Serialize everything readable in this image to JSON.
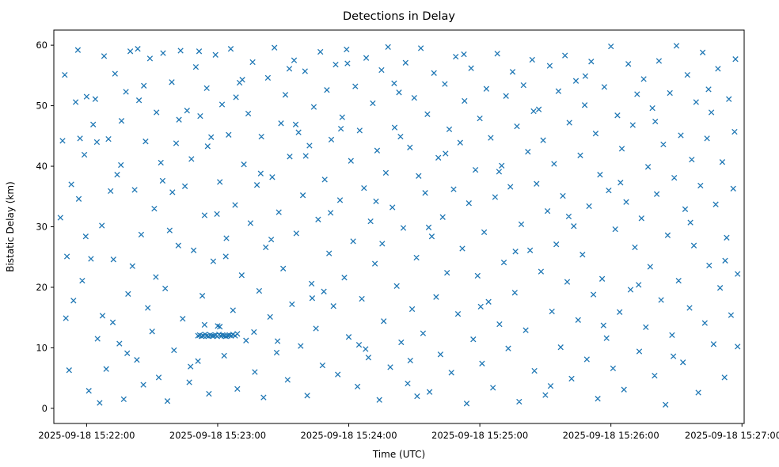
{
  "chart_data": {
    "type": "scatter",
    "title": "Detections in Delay",
    "xlabel": "Time (UTC)",
    "ylabel": "Bistatic Delay (km)",
    "marker": "x",
    "marker_color": "#1f77b4",
    "grid": false,
    "legend": "none",
    "xlim": [
      0,
      316
    ],
    "ylim": [
      -2.5,
      62.5
    ],
    "x_ticks": [
      {
        "t": 15,
        "label": "2025-09-18 15:22:00"
      },
      {
        "t": 75,
        "label": "2025-09-18 15:23:00"
      },
      {
        "t": 135,
        "label": "2025-09-18 15:24:00"
      },
      {
        "t": 195,
        "label": "2025-09-18 15:25:00"
      },
      {
        "t": 255,
        "label": "2025-09-18 15:26:00"
      },
      {
        "t": 315,
        "label": "2025-09-18 15:27:00"
      }
    ],
    "y_ticks": [
      0,
      10,
      20,
      30,
      40,
      50,
      60
    ],
    "points": [
      [
        3,
        31.5
      ],
      [
        4,
        44.2
      ],
      [
        5,
        55.1
      ],
      [
        6,
        25.1
      ],
      [
        7,
        6.3
      ],
      [
        8,
        37
      ],
      [
        9,
        17.8
      ],
      [
        10,
        50.6
      ],
      [
        11,
        59.2
      ],
      [
        12,
        44.6
      ],
      [
        13,
        21.1
      ],
      [
        14,
        41.9
      ],
      [
        15,
        51.5
      ],
      [
        16,
        2.9
      ],
      [
        17,
        24.7
      ],
      [
        18,
        46.9
      ],
      [
        19,
        51.1
      ],
      [
        20,
        11.5
      ],
      [
        21,
        0.9
      ],
      [
        22,
        30.2
      ],
      [
        23,
        58.2
      ],
      [
        24,
        6.5
      ],
      [
        25,
        44.5
      ],
      [
        26,
        35.9
      ],
      [
        27,
        14.2
      ],
      [
        28,
        55.3
      ],
      [
        29,
        38.6
      ],
      [
        30,
        10.7
      ],
      [
        31,
        47.5
      ],
      [
        32,
        1.5
      ],
      [
        33,
        52.3
      ],
      [
        34,
        18.9
      ],
      [
        35,
        59
      ],
      [
        36,
        23.5
      ],
      [
        37,
        36.1
      ],
      [
        38,
        8
      ],
      [
        39,
        50.9
      ],
      [
        40,
        28.7
      ],
      [
        41,
        3.9
      ],
      [
        42,
        44.1
      ],
      [
        43,
        16.6
      ],
      [
        44,
        57.8
      ],
      [
        45,
        12.7
      ],
      [
        46,
        33
      ],
      [
        47,
        48.9
      ],
      [
        48,
        5.1
      ],
      [
        49,
        40.6
      ],
      [
        50,
        58.7
      ],
      [
        51,
        19.8
      ],
      [
        52,
        1.2
      ],
      [
        53,
        29.4
      ],
      [
        54,
        53.9
      ],
      [
        55,
        9.6
      ],
      [
        56,
        43.8
      ],
      [
        57,
        26.9
      ],
      [
        58,
        59.1
      ],
      [
        59,
        14.8
      ],
      [
        60,
        36.7
      ],
      [
        61,
        49.2
      ],
      [
        62,
        4.3
      ],
      [
        66,
        12
      ],
      [
        66.8,
        12.1
      ],
      [
        67.6,
        11.9
      ],
      [
        68.4,
        12
      ],
      [
        69.2,
        12.2
      ],
      [
        70,
        12
      ],
      [
        70.8,
        11.9
      ],
      [
        71.6,
        12.1
      ],
      [
        72.4,
        12
      ],
      [
        73.2,
        12
      ],
      [
        74,
        12.1
      ],
      [
        74.8,
        11.9
      ],
      [
        75.6,
        12.2
      ],
      [
        76.4,
        12
      ],
      [
        77.2,
        12.1
      ],
      [
        78,
        12
      ],
      [
        78.8,
        11.9
      ],
      [
        79.6,
        12
      ],
      [
        80.4,
        12.1
      ],
      [
        81.2,
        12
      ],
      [
        82,
        12.2
      ],
      [
        83,
        12
      ],
      [
        69,
        13.8
      ],
      [
        76,
        13.5
      ],
      [
        84,
        12.3
      ],
      [
        63,
        41.2
      ],
      [
        64,
        26.1
      ],
      [
        65,
        56.4
      ],
      [
        66,
        7.8
      ],
      [
        67,
        48.3
      ],
      [
        68,
        18.6
      ],
      [
        69,
        31.9
      ],
      [
        70,
        52.9
      ],
      [
        71,
        2.4
      ],
      [
        72,
        44.8
      ],
      [
        73,
        24.3
      ],
      [
        74,
        58.4
      ],
      [
        75,
        13.6
      ],
      [
        76,
        37.4
      ],
      [
        77,
        50.2
      ],
      [
        78,
        8.7
      ],
      [
        79,
        28.1
      ],
      [
        80,
        45.2
      ],
      [
        81,
        59.4
      ],
      [
        82,
        16.2
      ],
      [
        83,
        33.6
      ],
      [
        84,
        3.2
      ],
      [
        85,
        53.8
      ],
      [
        86,
        22
      ],
      [
        87,
        40.3
      ],
      [
        88,
        11.2
      ],
      [
        89,
        48.7
      ],
      [
        90,
        30.6
      ],
      [
        91,
        57.2
      ],
      [
        92,
        6
      ],
      [
        93,
        36.9
      ],
      [
        94,
        19.4
      ],
      [
        95,
        44.9
      ],
      [
        96,
        1.8
      ],
      [
        97,
        26.6
      ],
      [
        98,
        54.6
      ],
      [
        99,
        15.1
      ],
      [
        100,
        38.2
      ],
      [
        101,
        59.6
      ],
      [
        102,
        9.2
      ],
      [
        103,
        32.4
      ],
      [
        104,
        47.1
      ],
      [
        105,
        23.1
      ],
      [
        106,
        51.8
      ],
      [
        107,
        4.7
      ],
      [
        108,
        41.6
      ],
      [
        109,
        17.2
      ],
      [
        110,
        57.5
      ],
      [
        111,
        28.9
      ],
      [
        112,
        45.6
      ],
      [
        113,
        10.3
      ],
      [
        114,
        35.2
      ],
      [
        115,
        55.7
      ],
      [
        116,
        2.1
      ],
      [
        117,
        43.4
      ],
      [
        118,
        20.6
      ],
      [
        119,
        49.8
      ],
      [
        120,
        13.2
      ],
      [
        121,
        31.2
      ],
      [
        122,
        58.9
      ],
      [
        123,
        7.1
      ],
      [
        124,
        37.8
      ],
      [
        125,
        52.6
      ],
      [
        126,
        25.6
      ],
      [
        127,
        44.4
      ],
      [
        128,
        16.9
      ],
      [
        129,
        56.8
      ],
      [
        130,
        5.6
      ],
      [
        131,
        34.4
      ],
      [
        132,
        48.1
      ],
      [
        133,
        21.6
      ],
      [
        134,
        59.3
      ],
      [
        135,
        11.8
      ],
      [
        136,
        40.9
      ],
      [
        137,
        27.6
      ],
      [
        138,
        53.2
      ],
      [
        139,
        3.6
      ],
      [
        140,
        45.9
      ],
      [
        141,
        18.1
      ],
      [
        142,
        36.4
      ],
      [
        143,
        57.9
      ],
      [
        144,
        8.4
      ],
      [
        145,
        30.9
      ],
      [
        146,
        50.4
      ],
      [
        147,
        23.9
      ],
      [
        148,
        42.6
      ],
      [
        149,
        1.4
      ],
      [
        150,
        55.9
      ],
      [
        151,
        14.4
      ],
      [
        152,
        38.9
      ],
      [
        153,
        59.7
      ],
      [
        154,
        6.8
      ],
      [
        155,
        33.2
      ],
      [
        156,
        46.4
      ],
      [
        157,
        20.2
      ],
      [
        158,
        52.2
      ],
      [
        159,
        10.9
      ],
      [
        160,
        29.8
      ],
      [
        161,
        57.1
      ],
      [
        162,
        4.1
      ],
      [
        163,
        43.1
      ],
      [
        164,
        16.4
      ],
      [
        165,
        51.3
      ],
      [
        166,
        24.9
      ],
      [
        167,
        38.4
      ],
      [
        168,
        59.5
      ],
      [
        169,
        12.4
      ],
      [
        170,
        35.6
      ],
      [
        171,
        48.6
      ],
      [
        172,
        2.7
      ],
      [
        173,
        28.4
      ],
      [
        174,
        55.4
      ],
      [
        175,
        18.4
      ],
      [
        176,
        41.4
      ],
      [
        177,
        8.9
      ],
      [
        178,
        31.6
      ],
      [
        179,
        53.6
      ],
      [
        180,
        22.4
      ],
      [
        181,
        46.1
      ],
      [
        182,
        5.9
      ],
      [
        183,
        36.2
      ],
      [
        184,
        58.1
      ],
      [
        185,
        15.6
      ],
      [
        186,
        43.9
      ],
      [
        187,
        26.4
      ],
      [
        188,
        50.8
      ],
      [
        189,
        0.8
      ],
      [
        190,
        33.9
      ],
      [
        191,
        56.2
      ],
      [
        192,
        11.4
      ],
      [
        193,
        39.4
      ],
      [
        194,
        21.9
      ],
      [
        195,
        47.9
      ],
      [
        196,
        7.4
      ],
      [
        197,
        29.1
      ],
      [
        198,
        52.8
      ],
      [
        199,
        17.6
      ],
      [
        200,
        44.7
      ],
      [
        201,
        3.4
      ],
      [
        202,
        34.9
      ],
      [
        203,
        58.6
      ],
      [
        204,
        13.9
      ],
      [
        205,
        40.1
      ],
      [
        206,
        24.1
      ],
      [
        207,
        51.6
      ],
      [
        208,
        9.9
      ],
      [
        209,
        36.6
      ],
      [
        210,
        55.6
      ],
      [
        211,
        19.1
      ],
      [
        212,
        46.6
      ],
      [
        213,
        1.1
      ],
      [
        214,
        30.4
      ],
      [
        215,
        53.4
      ],
      [
        216,
        12.9
      ],
      [
        217,
        42.4
      ],
      [
        218,
        26.1
      ],
      [
        219,
        57.6
      ],
      [
        220,
        6.2
      ],
      [
        221,
        37.1
      ],
      [
        222,
        49.4
      ],
      [
        223,
        22.6
      ],
      [
        224,
        44.3
      ],
      [
        225,
        2.2
      ],
      [
        226,
        32.6
      ],
      [
        227,
        56.6
      ],
      [
        228,
        16
      ],
      [
        229,
        40.4
      ],
      [
        230,
        27.1
      ],
      [
        231,
        52.4
      ],
      [
        232,
        10.1
      ],
      [
        233,
        35.1
      ],
      [
        234,
        58.3
      ],
      [
        235,
        20.9
      ],
      [
        236,
        47.2
      ],
      [
        237,
        4.9
      ],
      [
        238,
        30.1
      ],
      [
        239,
        54.1
      ],
      [
        240,
        14.6
      ],
      [
        241,
        41.8
      ],
      [
        242,
        25.4
      ],
      [
        243,
        50.1
      ],
      [
        244,
        8.1
      ],
      [
        245,
        33.4
      ],
      [
        246,
        57.3
      ],
      [
        247,
        18.8
      ],
      [
        248,
        45.4
      ],
      [
        249,
        1.6
      ],
      [
        250,
        38.6
      ],
      [
        251,
        21.4
      ],
      [
        252,
        53.1
      ],
      [
        253,
        11.6
      ],
      [
        254,
        36
      ],
      [
        255,
        59.8
      ],
      [
        256,
        6.6
      ],
      [
        257,
        29.6
      ],
      [
        258,
        48.4
      ],
      [
        259,
        15.9
      ],
      [
        260,
        42.9
      ],
      [
        261,
        3.1
      ],
      [
        262,
        34.1
      ],
      [
        263,
        56.9
      ],
      [
        264,
        19.6
      ],
      [
        265,
        46.8
      ],
      [
        266,
        26.6
      ],
      [
        267,
        51.9
      ],
      [
        268,
        9.4
      ],
      [
        269,
        31.4
      ],
      [
        270,
        54.4
      ],
      [
        271,
        13.4
      ],
      [
        272,
        39.9
      ],
      [
        273,
        23.4
      ],
      [
        274,
        49.6
      ],
      [
        275,
        5.4
      ],
      [
        276,
        35.4
      ],
      [
        277,
        57.4
      ],
      [
        278,
        17.9
      ],
      [
        279,
        43.6
      ],
      [
        280,
        0.6
      ],
      [
        281,
        28.6
      ],
      [
        282,
        52.1
      ],
      [
        283,
        12.1
      ],
      [
        284,
        38.1
      ],
      [
        285,
        59.9
      ],
      [
        286,
        21.1
      ],
      [
        287,
        45.1
      ],
      [
        288,
        7.6
      ],
      [
        289,
        32.9
      ],
      [
        290,
        55.1
      ],
      [
        291,
        16.6
      ],
      [
        292,
        41.1
      ],
      [
        293,
        26.9
      ],
      [
        294,
        50.6
      ],
      [
        295,
        2.6
      ],
      [
        296,
        36.8
      ],
      [
        297,
        58.8
      ],
      [
        298,
        14.1
      ],
      [
        299,
        44.6
      ],
      [
        300,
        23.6
      ],
      [
        301,
        48.9
      ],
      [
        302,
        10.6
      ],
      [
        303,
        33.7
      ],
      [
        304,
        56.1
      ],
      [
        305,
        19.9
      ],
      [
        306,
        40.7
      ],
      [
        307,
        5.1
      ],
      [
        308,
        28.2
      ],
      [
        309,
        51.1
      ],
      [
        310,
        15.4
      ],
      [
        311,
        36.3
      ],
      [
        312,
        57.7
      ],
      [
        313,
        22.2
      ],
      [
        313,
        10.2
      ],
      [
        5.5,
        14.9
      ],
      [
        11.4,
        34.6
      ],
      [
        19.7,
        44
      ],
      [
        27.3,
        24.6
      ],
      [
        33.6,
        9.1
      ],
      [
        41.2,
        53.3
      ],
      [
        49.8,
        37.6
      ],
      [
        57.3,
        47.7
      ],
      [
        66.5,
        59
      ],
      [
        74.7,
        32.1
      ],
      [
        83.4,
        51.4
      ],
      [
        91.6,
        12.6
      ],
      [
        99.5,
        27.9
      ],
      [
        107.8,
        56.1
      ],
      [
        115.3,
        41.7
      ],
      [
        123.6,
        19.3
      ],
      [
        131.4,
        46.2
      ],
      [
        139.7,
        10.5
      ],
      [
        147.5,
        34.2
      ],
      [
        155.8,
        53.7
      ],
      [
        163.2,
        7.9
      ],
      [
        171.6,
        29.9
      ],
      [
        179.3,
        42.1
      ],
      [
        187.7,
        58.5
      ],
      [
        195.4,
        16.8
      ],
      [
        203.8,
        39.1
      ],
      [
        211.3,
        25.9
      ],
      [
        219.6,
        49.1
      ],
      [
        227.4,
        3.7
      ],
      [
        235.7,
        31.7
      ],
      [
        243.3,
        54.9
      ],
      [
        251.6,
        13.7
      ],
      [
        259.4,
        37.3
      ],
      [
        267.7,
        20.4
      ],
      [
        275.3,
        47.4
      ],
      [
        283.6,
        8.6
      ],
      [
        291.4,
        30.7
      ],
      [
        299.7,
        52.7
      ],
      [
        307.3,
        24.4
      ],
      [
        311.6,
        45.7
      ],
      [
        14.6,
        28.4
      ],
      [
        22.3,
        15.3
      ],
      [
        30.7,
        40.2
      ],
      [
        38.4,
        59.4
      ],
      [
        46.7,
        21.7
      ],
      [
        54.3,
        35.7
      ],
      [
        62.6,
        6.9
      ],
      [
        70.4,
        43.3
      ],
      [
        78.7,
        25.1
      ],
      [
        86.3,
        54.3
      ],
      [
        94.7,
        38.8
      ],
      [
        102.4,
        11.1
      ],
      [
        110.7,
        46.9
      ],
      [
        118.3,
        18.2
      ],
      [
        126.7,
        32.3
      ],
      [
        134.4,
        57
      ],
      [
        142.7,
        9.8
      ],
      [
        150.3,
        27.2
      ],
      [
        158.7,
        44.9
      ],
      [
        166.3,
        2
      ]
    ]
  }
}
